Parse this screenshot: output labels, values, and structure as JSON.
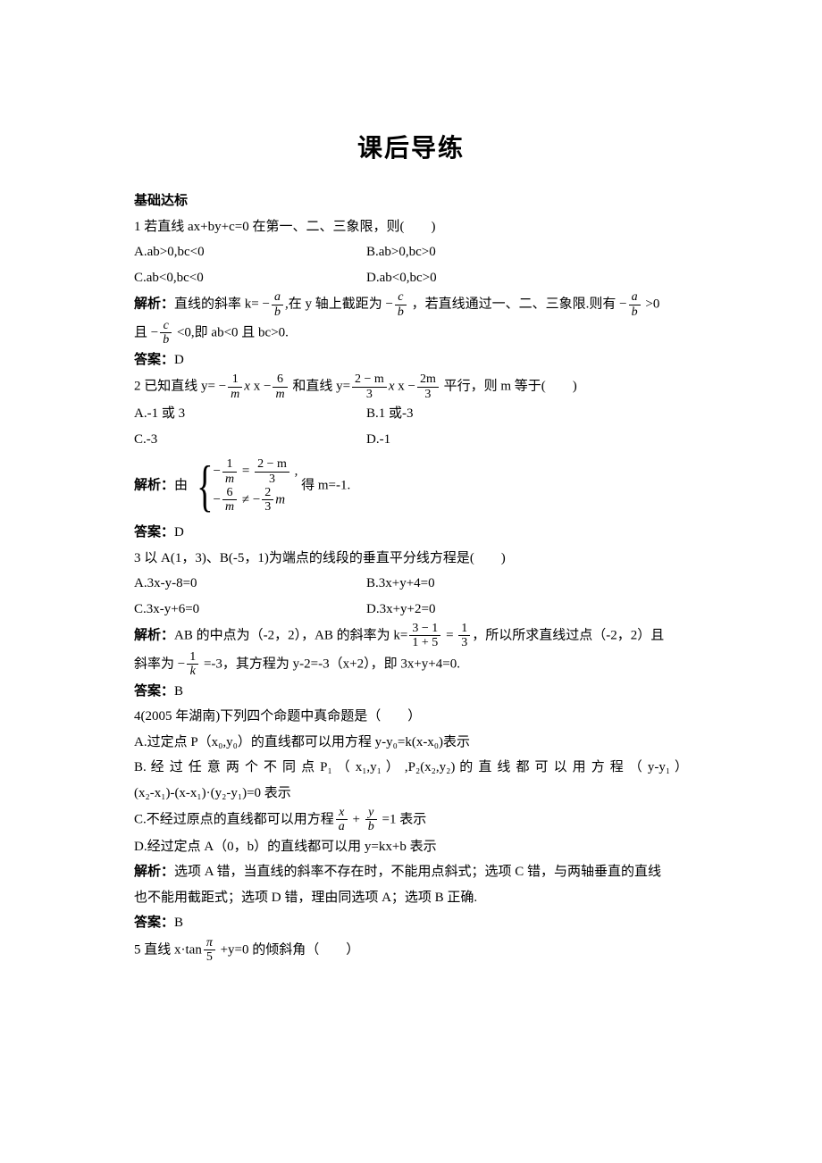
{
  "title": "课后导练",
  "section1": "基础达标",
  "q1": {
    "stem": "1 若直线 ax+by+c=0 在第一、二、三象限，则(　　)",
    "A": "A.ab>0,bc<0",
    "B": "B.ab>0,bc>0",
    "C": "C.ab<0,bc<0",
    "D": "D.ab<0,bc>0",
    "analysis_label": "解析：",
    "analysis_1a": "直线的斜率 k= −",
    "f_a": "a",
    "f_b": "b",
    "analysis_1b": ",在 y 轴上截距为 −",
    "f_c": "c",
    "analysis_1c": " ，若直线通过一、二、三象限.则有 −",
    "analysis_1d": " >0",
    "analysis_2a": "且 −",
    "analysis_2b": " <0,即 ab<0 且 bc>0.",
    "answer_label": "答案：",
    "answer": "D"
  },
  "q2": {
    "stem_a": "2 已知直线 y= −",
    "n1": "1",
    "dm": "m",
    "stem_b": " x −",
    "n6": "6",
    "stem_c": " 和直线 y=",
    "num2m": "2 − m",
    "d3": "3",
    "stem_d": " x −",
    "num2mm": "2m",
    "stem_e": " 平行，则 m 等于(　　)",
    "A": "A.-1 或 3",
    "B": "B.1 或-3",
    "C": "C.-3",
    "D": "D.-1",
    "analysis_label": "解析：",
    "analysis_by": "由",
    "eq1_lnum": "1",
    "eq1_rnum": "2 − m",
    "eq1_rden": "3",
    "eq2_lnum": "6",
    "eq2_rnum": "2",
    "tail": " 得 m=-1.",
    "answer_label": "答案：",
    "answer": "D"
  },
  "q3": {
    "stem": "3 以 A(1，3)、B(-5，1)为端点的线段的垂直平分线方程是(　　)",
    "A": "A.3x-y-8=0",
    "B": "B.3x+y+4=0",
    "C": "C.3x-y+6=0",
    "D": "D.3x+y+2=0",
    "analysis_label": "解析：",
    "ana_a": "AB 的中点为（-2，2），AB 的斜率为 k=",
    "frac1_num": "3 − 1",
    "frac1_den": "1 + 5",
    "eq": " = ",
    "frac2_num": "1",
    "frac2_den": "3",
    "ana_b": "，所以所求直线过点（-2，2）且",
    "ana_c": "斜率为 −",
    "fk_num": "1",
    "fk_den": "k",
    "ana_d": " =-3，其方程为 y-2=-3（x+2），即 3x+y+4=0.",
    "answer_label": "答案：",
    "answer": "B"
  },
  "q4": {
    "stem": "4(2005 年湖南)下列四个命题中真命题是（　　）",
    "A": "A.过定点 P（x₀,y₀）的直线都可以用方程 y-y₀=k(x-x₀)表示",
    "B1": "B. 经 过 任 意 两 个 不 同 点 P₁ （ x₁,y₁ ） ,P₂(x₂,y₂) 的 直 线 都 可 以 用 方 程 （ y-y₁ ）",
    "B2": "(x₂-x₁)-(x-x₁)·(y₂-y₁)=0 表示",
    "C_a": "C.不经过原点的直线都可以用方程",
    "fc_x": "x",
    "fc_a": "a",
    "plus": " + ",
    "fc_y": "y",
    "fc_b": "b",
    "C_b": " =1 表示",
    "D": "D.经过定点 A（0，b）的直线都可以用 y=kx+b 表示",
    "analysis_label": "解析：",
    "ana1": "选项 A 错，当直线的斜率不存在时，不能用点斜式；选项 C 错，与两轴垂直的直线",
    "ana2": "也不能用截距式；选项 D 错，理由同选项 A；选项 B 正确.",
    "answer_label": "答案：",
    "answer": "B"
  },
  "q5": {
    "stem_a": "5 直线 x·tan",
    "pi": "π",
    "five": "5",
    "stem_b": " +y=0 的倾斜角（　　）"
  }
}
